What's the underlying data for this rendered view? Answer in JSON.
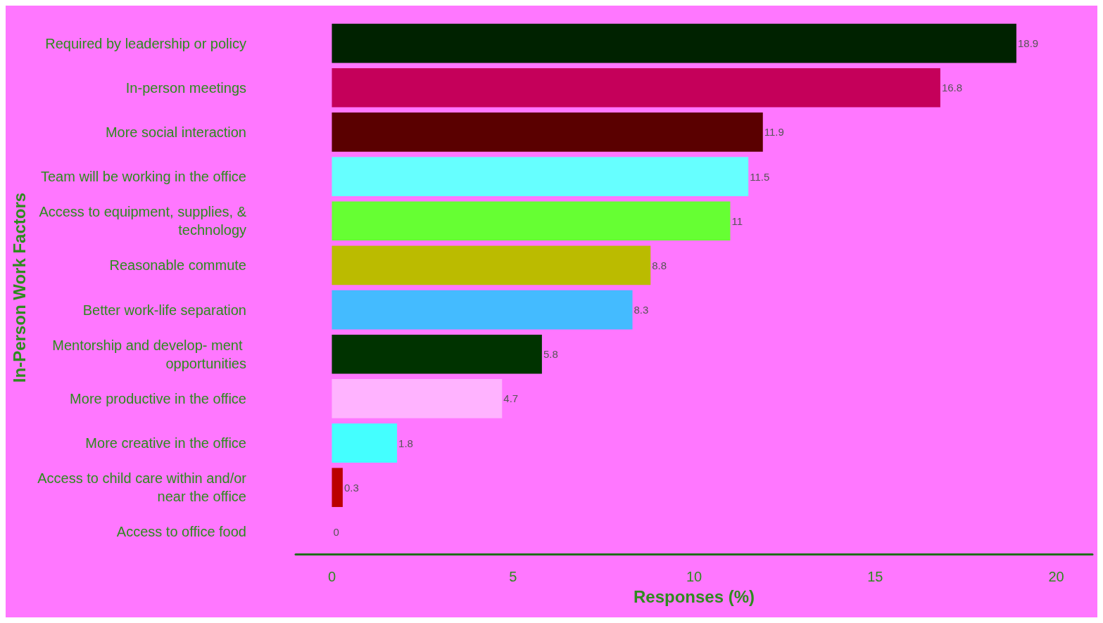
{
  "chart_data": {
    "type": "bar",
    "orientation": "horizontal",
    "xlabel": "Responses (%)",
    "ylabel": "In-Person Work Factors",
    "categories": [
      "Required by leadership or policy",
      "In-person meetings",
      "More social interaction",
      "Team will be working in the office",
      "Access to equipment, supplies, & technology",
      "Reasonable commute",
      "Better work-life separation",
      "Mentorship and develop- ment opportunities",
      "More productive in the office",
      "More creative in the office",
      "Access to child care within and/or near the office",
      "Access to office food"
    ],
    "values": [
      18.9,
      16.8,
      11.9,
      11.5,
      11,
      8.8,
      8.3,
      5.8,
      4.7,
      1.8,
      0.3,
      0
    ],
    "colors": [
      "#002200",
      "#c5005a",
      "#5a0000",
      "#66ffff",
      "#66ff33",
      "#bbbb00",
      "#44bbff",
      "#003300",
      "#ffb3ff",
      "#44ffff",
      "#bb0000",
      "#888888"
    ],
    "xlim": [
      -1,
      21
    ],
    "xticks": [
      0,
      5,
      10,
      15,
      20
    ],
    "data_labels": true,
    "grid": false
  }
}
